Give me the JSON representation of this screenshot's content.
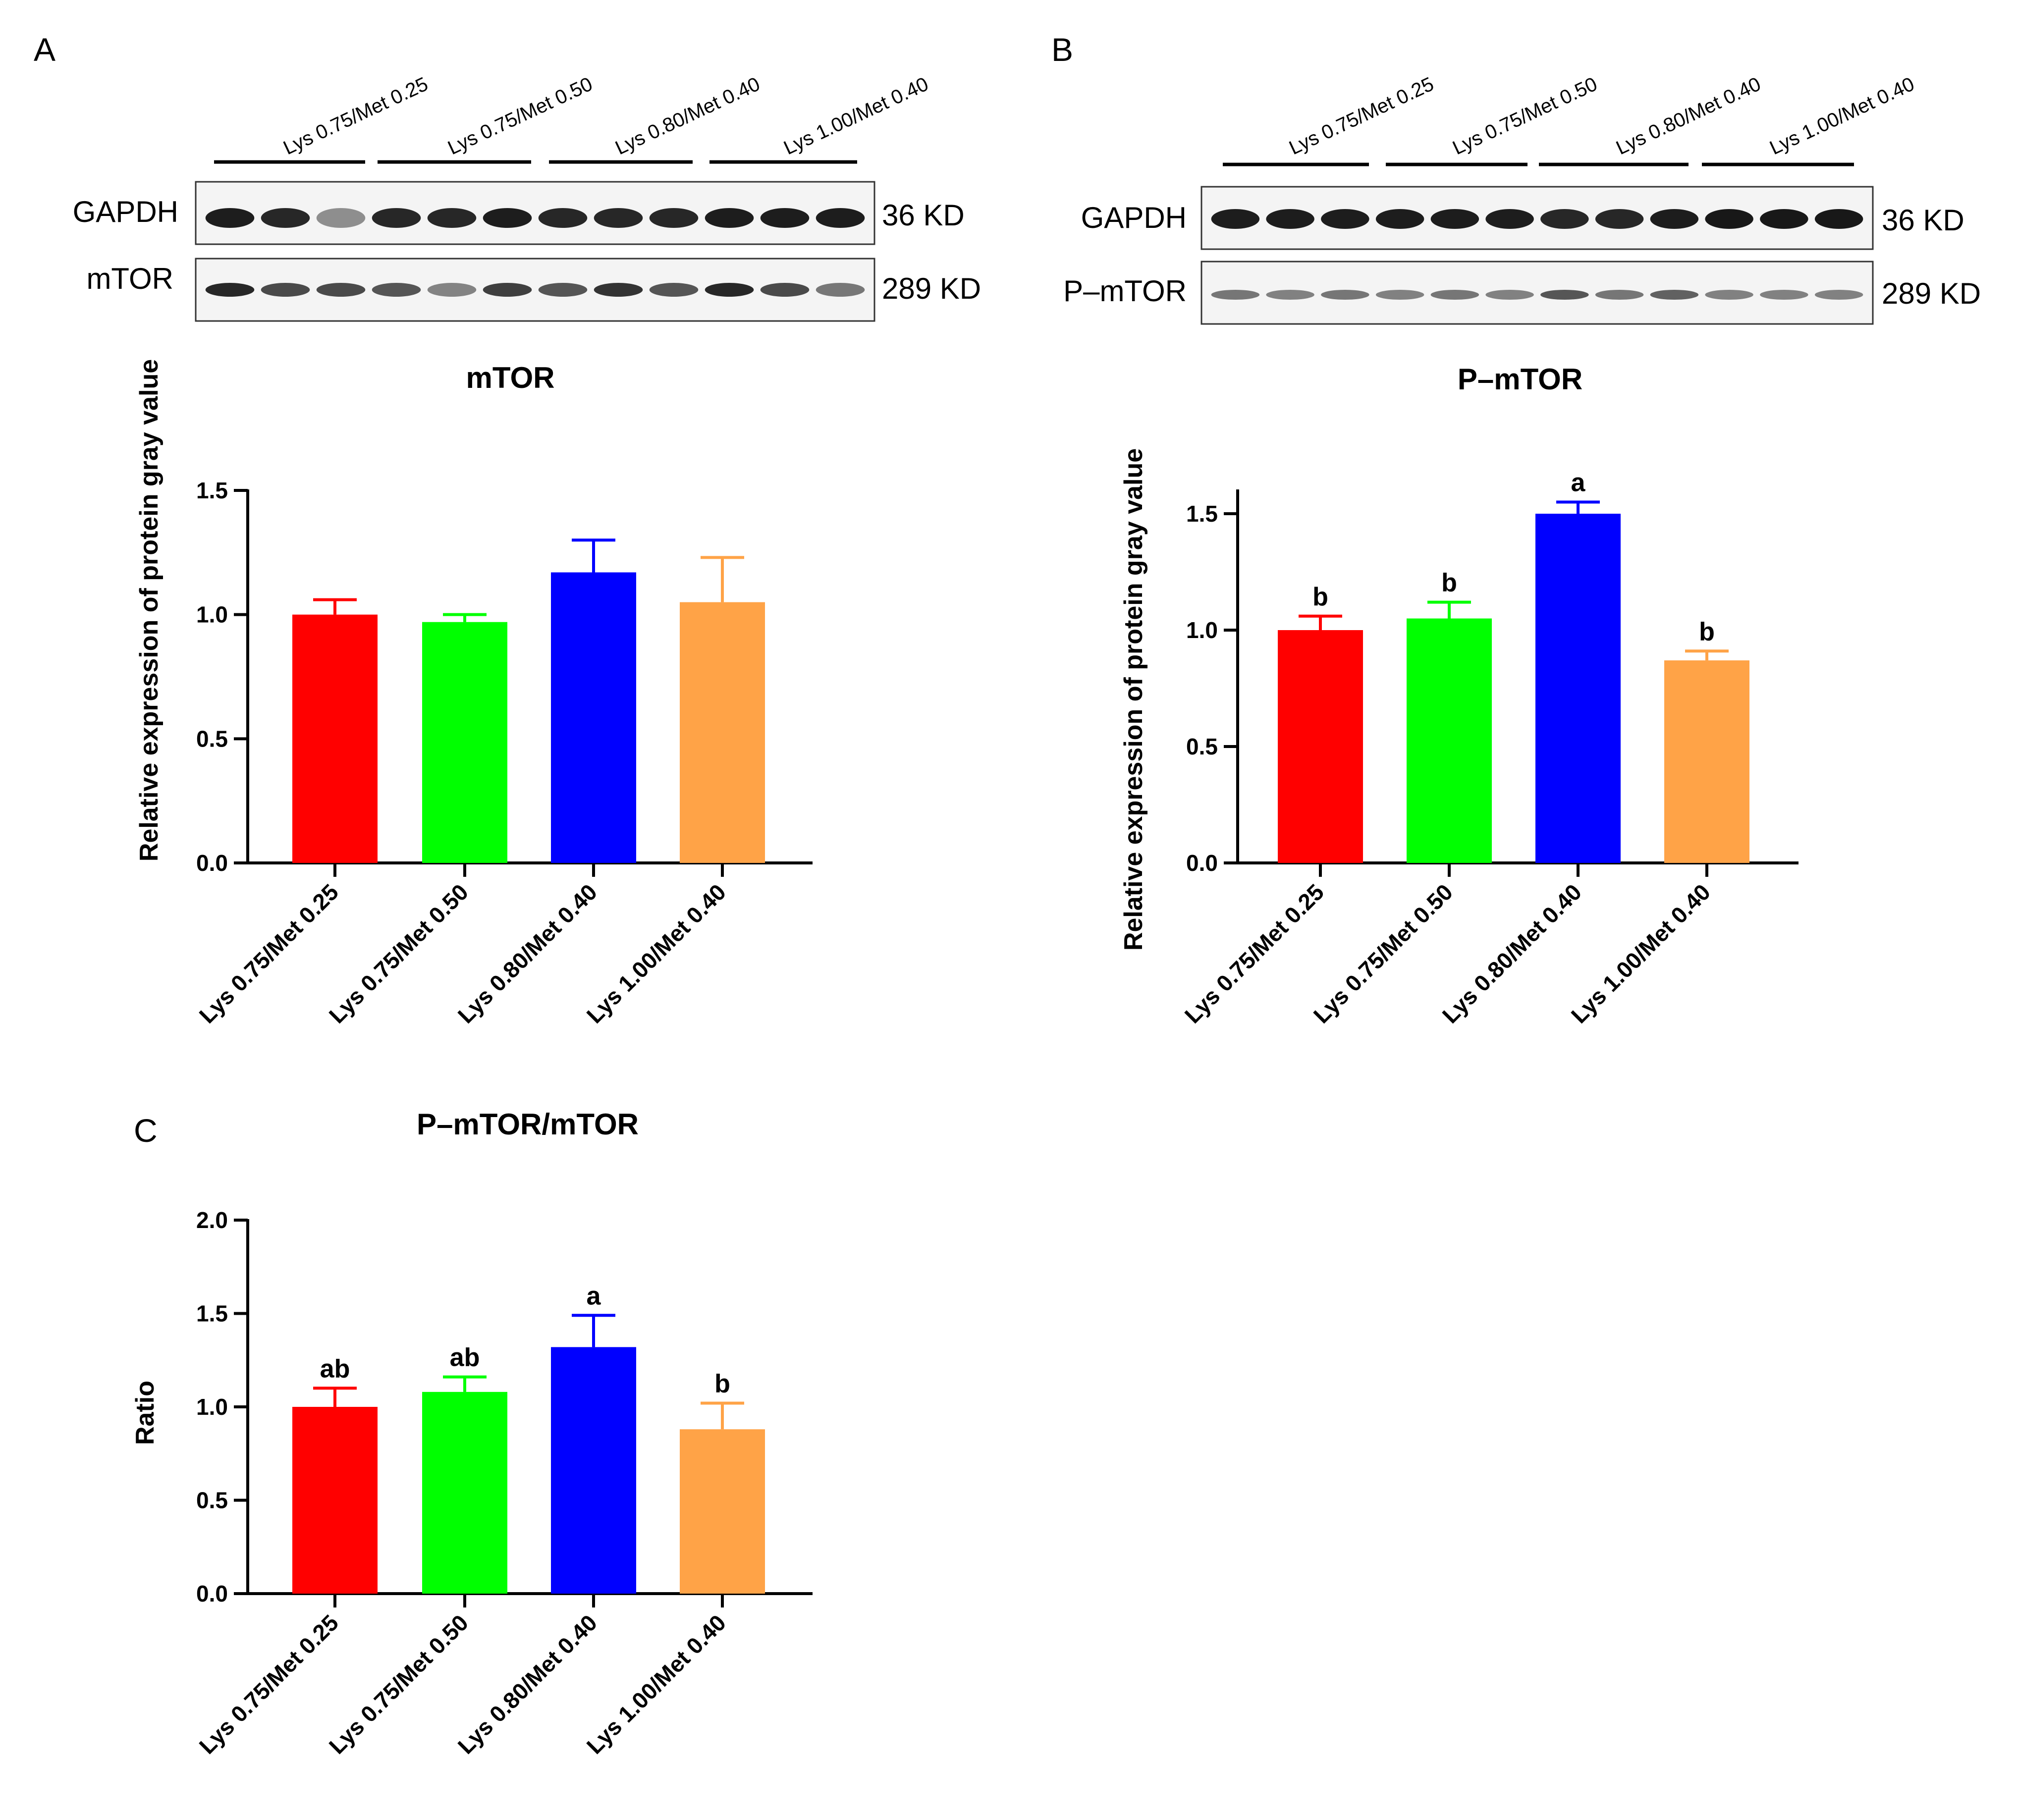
{
  "panels": {
    "A": {
      "letter": "A",
      "blot": {
        "group_labels": [
          "Lys 0.75/Met 0.25",
          "Lys 0.75/Met 0.50",
          "Lys 0.80/Met 0.40",
          "Lys 1.00/Met 0.40"
        ],
        "rows": [
          {
            "name": "GAPDH",
            "size": "36 KD"
          },
          {
            "name": "mTOR",
            "size": "289 KD"
          }
        ]
      }
    },
    "B": {
      "letter": "B",
      "blot": {
        "group_labels": [
          "Lys 0.75/Met 0.25",
          "Lys 0.75/Met 0.50",
          "Lys 0.80/Met 0.40",
          "Lys 1.00/Met 0.40"
        ],
        "rows": [
          {
            "name": "GAPDH",
            "size": "36 KD"
          },
          {
            "name": "P–mTOR",
            "size": "289 KD"
          }
        ]
      }
    },
    "C": {
      "letter": "C"
    }
  },
  "colors": {
    "red": "#ff0000",
    "green": "#00ff00",
    "blue": "#0000ff",
    "orange": "#ffa347"
  },
  "chart_data": [
    {
      "panel": "A",
      "type": "bar",
      "title": "mTOR",
      "xlabel": "",
      "ylabel": "Relative expression of protein gray value",
      "categories": [
        "Lys 0.75/Met 0.25",
        "Lys 0.75/Met 0.50",
        "Lys 0.80/Met 0.40",
        "Lys 1.00/Met 0.40"
      ],
      "values": [
        1.0,
        0.97,
        1.17,
        1.05
      ],
      "errors": [
        0.06,
        0.03,
        0.13,
        0.18
      ],
      "significance": [
        "",
        "",
        "",
        ""
      ],
      "ylim": [
        0,
        1.5
      ],
      "yticks": [
        0.0,
        0.5,
        1.0,
        1.5
      ],
      "ytick_labels": [
        "0.0",
        "0.5",
        "1.0",
        "1.5"
      ],
      "grid": false
    },
    {
      "panel": "B",
      "type": "bar",
      "title": "P–mTOR",
      "xlabel": "",
      "ylabel": "Relative expression of protein gray value",
      "categories": [
        "Lys 0.75/Met 0.25",
        "Lys 0.75/Met 0.50",
        "Lys 0.80/Met 0.40",
        "Lys 1.00/Met 0.40"
      ],
      "values": [
        1.0,
        1.05,
        1.5,
        0.87
      ],
      "errors": [
        0.06,
        0.07,
        0.05,
        0.04
      ],
      "significance": [
        "b",
        "b",
        "a",
        "b"
      ],
      "ylim": [
        0,
        1.6
      ],
      "yticks": [
        0.0,
        0.5,
        1.0,
        1.5
      ],
      "ytick_labels": [
        "0.0",
        "0.5",
        "1.0",
        "1.5"
      ],
      "grid": false
    },
    {
      "panel": "C",
      "type": "bar",
      "title": "P–mTOR/mTOR",
      "xlabel": "",
      "ylabel": "Ratio",
      "categories": [
        "Lys 0.75/Met 0.25",
        "Lys 0.75/Met 0.50",
        "Lys 0.80/Met 0.40",
        "Lys 1.00/Met 0.40"
      ],
      "values": [
        1.0,
        1.08,
        1.32,
        0.88
      ],
      "errors": [
        0.1,
        0.08,
        0.17,
        0.14
      ],
      "significance": [
        "ab",
        "ab",
        "a",
        "b"
      ],
      "ylim": [
        0,
        2.0
      ],
      "yticks": [
        0.0,
        0.5,
        1.0,
        1.5,
        2.0
      ],
      "ytick_labels": [
        "0.0",
        "0.5",
        "1.0",
        "1.5",
        "2.0"
      ],
      "grid": false
    }
  ]
}
